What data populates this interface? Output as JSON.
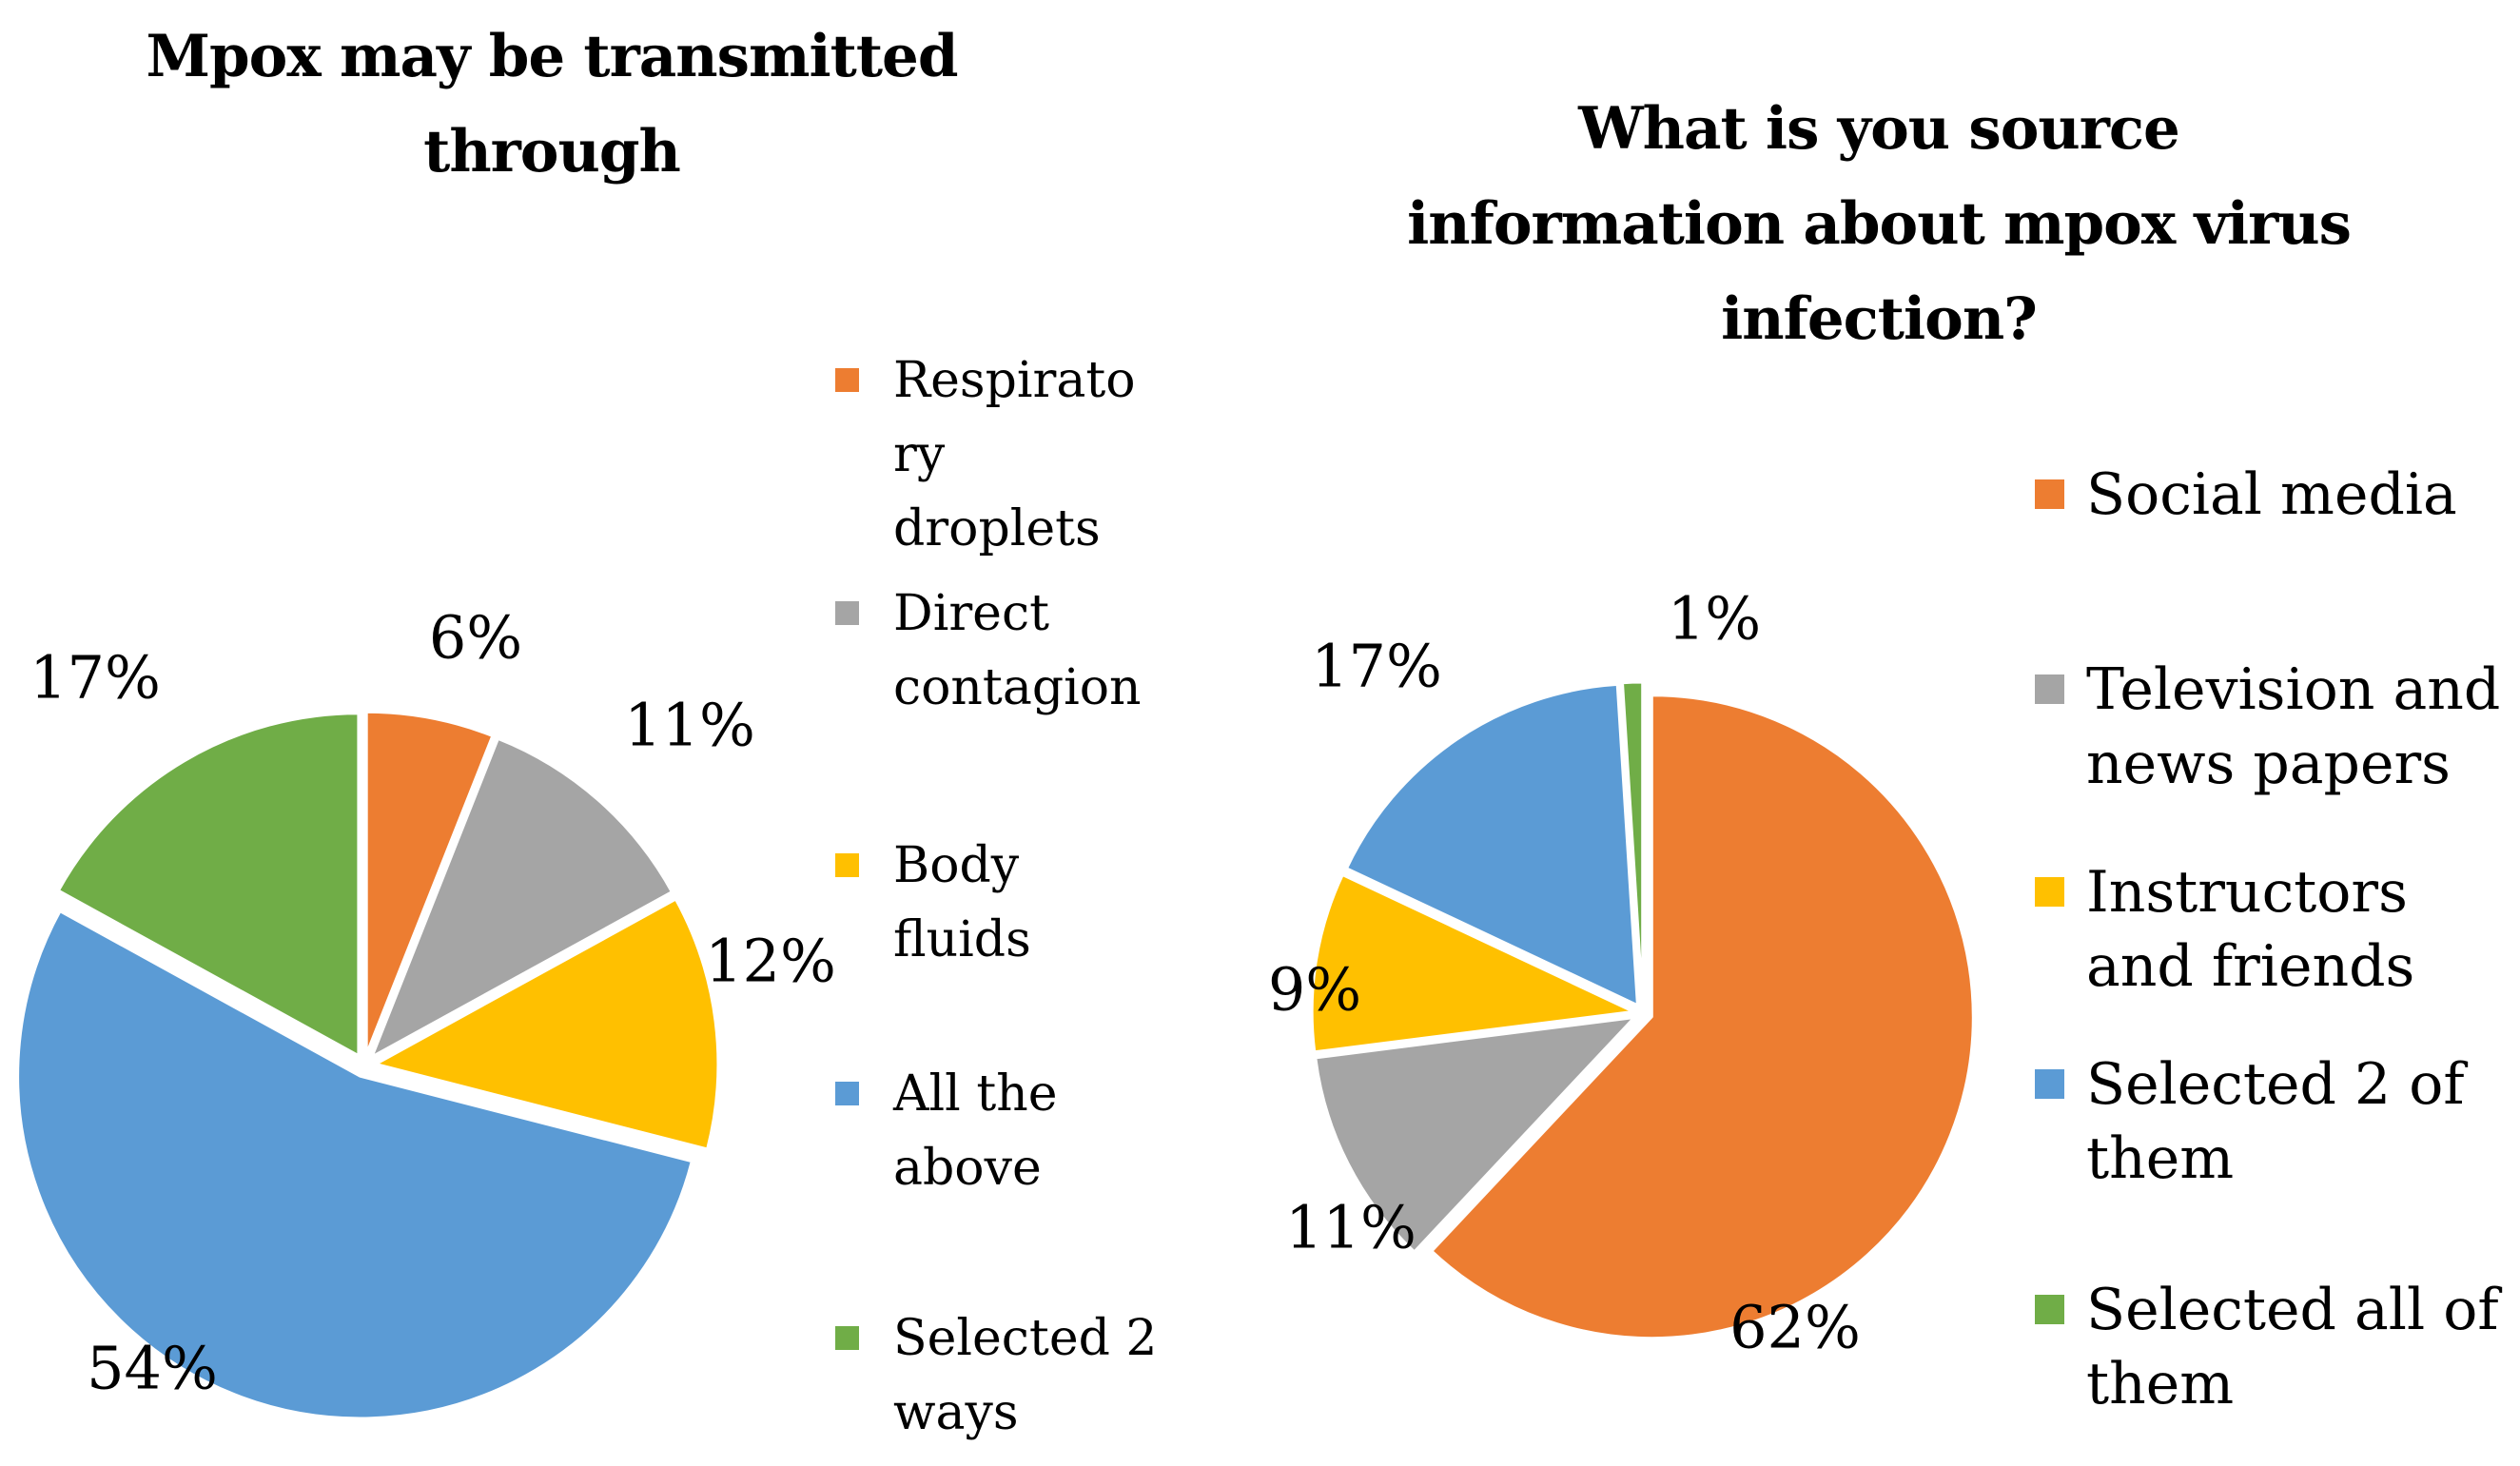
{
  "background": "#ffffff",
  "chart_data": [
    {
      "type": "pie",
      "title": "Mpox may be transmitted through",
      "title_lines": [
        "Mpox may be transmitted",
        "through"
      ],
      "direction": "clockwise",
      "start_angle_deg": 0,
      "legend_position": "right",
      "slices": [
        {
          "label": "Respiratory droplets",
          "label_lines": [
            "Respirato",
            "ry",
            "droplets"
          ],
          "value": 6,
          "pct_label": "6%",
          "color": "#ED7D31"
        },
        {
          "label": "Direct contagion",
          "label_lines": [
            "Direct",
            "contagion"
          ],
          "value": 11,
          "pct_label": "11%",
          "color": "#A5A5A5"
        },
        {
          "label": "Body fluids",
          "label_lines": [
            "Body",
            "fluids"
          ],
          "value": 12,
          "pct_label": "12%",
          "color": "#FFC000"
        },
        {
          "label": "All the above",
          "label_lines": [
            "All the",
            "above"
          ],
          "value": 54,
          "pct_label": "54%",
          "color": "#5B9BD5"
        },
        {
          "label": "Selected 2 ways",
          "label_lines": [
            "Selected 2",
            "ways"
          ],
          "value": 17,
          "pct_label": "17%",
          "color": "#70AD47"
        }
      ]
    },
    {
      "type": "pie",
      "title": "What is you source information about mpox virus infection?",
      "title_lines": [
        "What is you source",
        "information about mpox virus",
        "infection?"
      ],
      "direction": "clockwise",
      "start_angle_deg": 0,
      "legend_position": "right",
      "slices": [
        {
          "label": "Social media",
          "label_lines": [
            "Social media"
          ],
          "value": 62,
          "pct_label": "62%",
          "color": "#ED7D31"
        },
        {
          "label": "Television and news papers",
          "label_lines": [
            "Television and",
            "news papers"
          ],
          "value": 11,
          "pct_label": "11%",
          "color": "#A5A5A5"
        },
        {
          "label": "Instructors and friends",
          "label_lines": [
            "Instructors",
            "and friends"
          ],
          "value": 9,
          "pct_label": "9%",
          "color": "#FFC000"
        },
        {
          "label": "Selected 2 of them",
          "label_lines": [
            "Selected 2 of",
            "them"
          ],
          "value": 17,
          "pct_label": "17%",
          "color": "#5B9BD5"
        },
        {
          "label": "Selected all of them",
          "label_lines": [
            "Selected all of",
            "them"
          ],
          "value": 1,
          "pct_label": "1%",
          "color": "#70AD47"
        }
      ]
    }
  ]
}
